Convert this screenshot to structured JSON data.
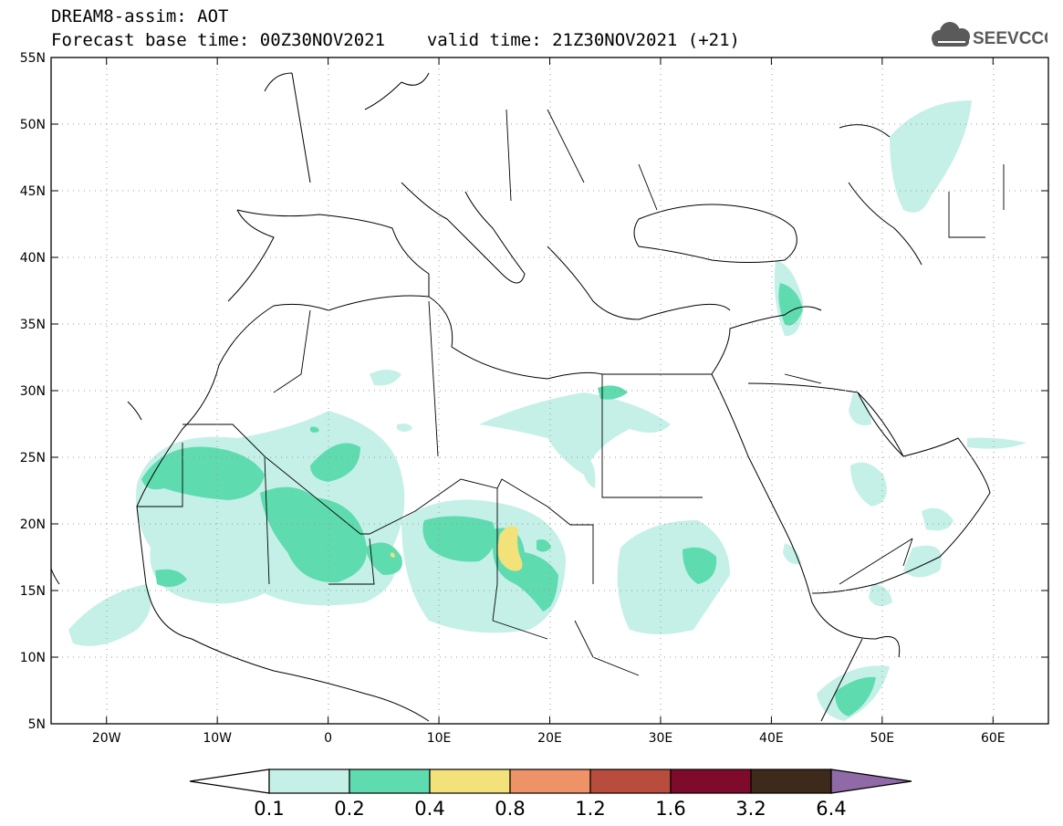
{
  "header": {
    "title": "DREAM8-assim: AOT",
    "base_time": "Forecast base time: 00Z30NOV2021",
    "valid_time": "valid time: 21Z30NOV2021 (+21)"
  },
  "logo": {
    "text": "SEEVCCC",
    "icon": "cloud-icon"
  },
  "map": {
    "lon_range": [
      -25,
      65
    ],
    "lat_range": [
      5,
      55
    ],
    "lat_ticks": [
      "5N",
      "10N",
      "15N",
      "20N",
      "25N",
      "30N",
      "35N",
      "40N",
      "45N",
      "50N",
      "55N"
    ],
    "lon_ticks": [
      "20W",
      "10W",
      "0",
      "10E",
      "20E",
      "30E",
      "40E",
      "50E",
      "60E"
    ]
  },
  "colorbar": {
    "labels": [
      "0.1",
      "0.2",
      "0.4",
      "0.8",
      "1.2",
      "1.6",
      "3.2",
      "6.4"
    ],
    "colors": [
      "#ffffff",
      "#c4f0e8",
      "#5fdbb0",
      "#f3e27a",
      "#ee9268",
      "#b84d3e",
      "#7f0b2c",
      "#3e2a1a",
      "#8f6aa6"
    ]
  }
}
